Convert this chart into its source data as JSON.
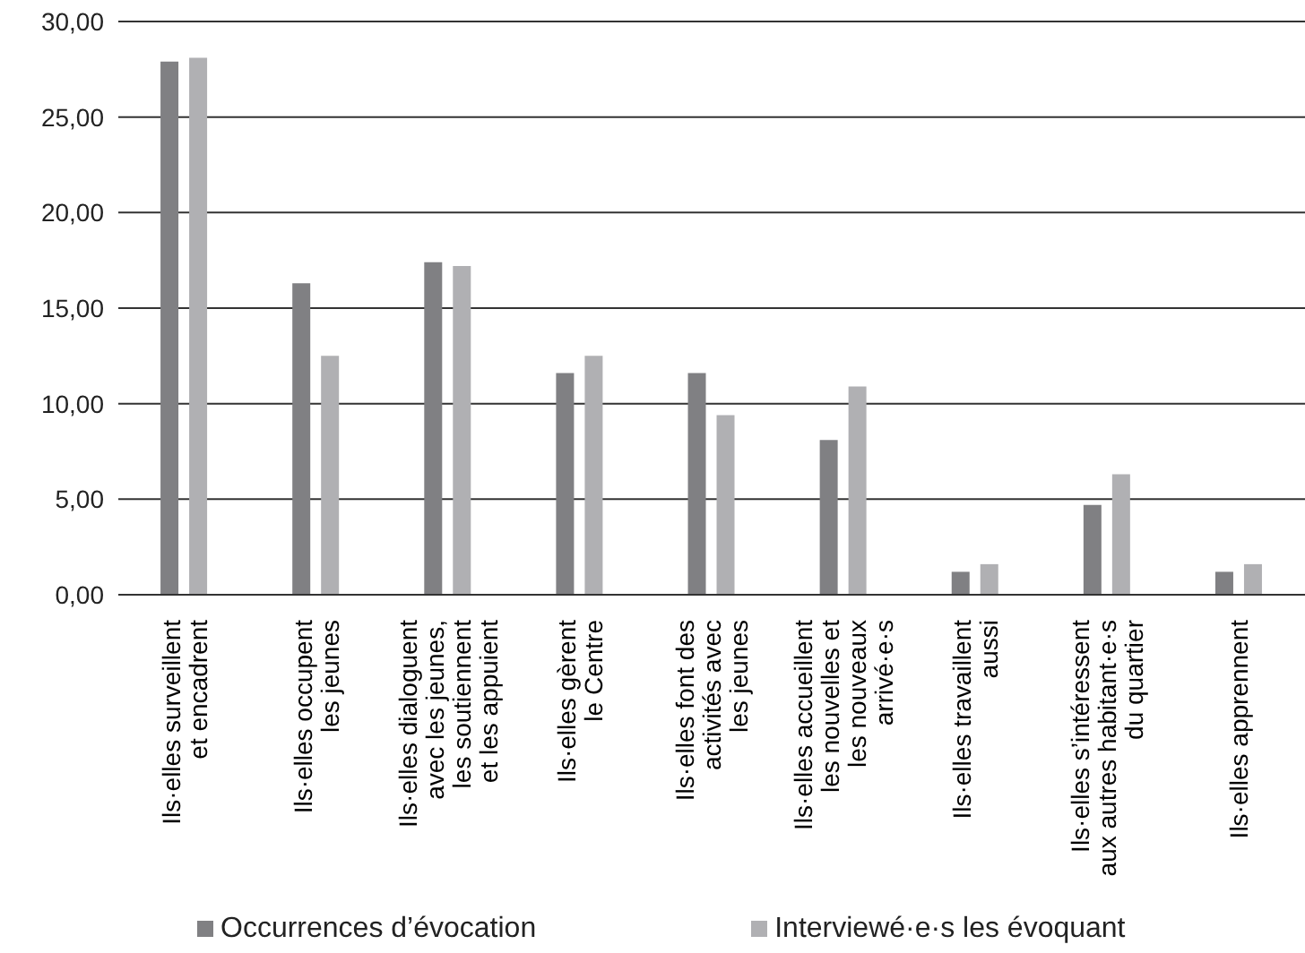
{
  "chart_data": {
    "type": "bar",
    "categories": [
      "Ils·elles surveillent\net encadrent",
      "Ils·elles occupent\nles jeunes",
      "Ils·elles dialoguent\navec les jeunes,\nles soutiennent\net les appuient",
      "Ils·elles gèrent\nle Centre",
      "Ils·elles font des\nactivités avec\nles jeunes",
      "Ils·elles accueillent\nles nouvelles et\nles nouveaux\narrivé·e·s",
      "Ils·elles travaillent\naussi",
      "Ils·elles s’intéressent\naux autres habitant·e·s\ndu quartier",
      "Ils·elles apprennent"
    ],
    "series": [
      {
        "name": "Occurrences d’évocation",
        "color": "#808083",
        "values": [
          27.9,
          16.3,
          17.4,
          11.6,
          11.6,
          8.1,
          1.2,
          4.7,
          1.2
        ]
      },
      {
        "name": "Interviewé·e·s les évoquant",
        "color": "#b0b0b3",
        "values": [
          28.1,
          12.5,
          17.2,
          12.5,
          9.4,
          10.9,
          1.6,
          6.3,
          1.6
        ]
      }
    ],
    "ylim": [
      0,
      30
    ],
    "yticks": [
      {
        "value": 0,
        "label": "0,00"
      },
      {
        "value": 5,
        "label": "5,00"
      },
      {
        "value": 10,
        "label": "10,00"
      },
      {
        "value": 15,
        "label": "15,00"
      },
      {
        "value": 20,
        "label": "20,00"
      },
      {
        "value": 25,
        "label": "25,00"
      },
      {
        "value": 30,
        "label": "30,00"
      }
    ],
    "grid": "y",
    "legend": "bottom left"
  }
}
